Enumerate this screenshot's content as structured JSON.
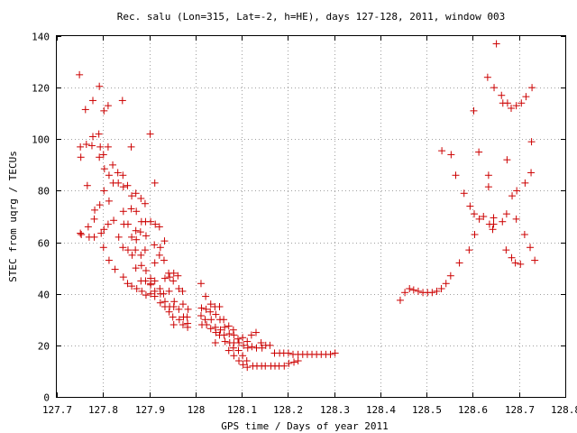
{
  "chart_data": {
    "type": "scatter",
    "title": "Rec. salu (Lon=315, Lat=-2, h=HE), days 127-128, 2011, window 003",
    "xlabel": "GPS time / Days of year 2011",
    "ylabel": "STEC from uqrg / TECUs",
    "xlim": [
      127.7,
      128.8
    ],
    "ylim": [
      0,
      140
    ],
    "x_ticks": [
      "127.7",
      "127.8",
      "127.9",
      "128",
      "128.1",
      "128.2",
      "128.3",
      "128.4",
      "128.5",
      "128.6",
      "128.7",
      "128.8"
    ],
    "y_ticks": [
      "0",
      "20",
      "40",
      "60",
      "80",
      "100",
      "120",
      "140"
    ],
    "grid": true,
    "marker": "+",
    "color": "#cc0000",
    "series": [
      {
        "points": [
          [
            127.749,
            125
          ],
          [
            127.751,
            97
          ],
          [
            127.752,
            93
          ],
          [
            127.751,
            63.5
          ],
          [
            127.753,
            63
          ],
          [
            127.762,
            111.5
          ],
          [
            127.764,
            98
          ],
          [
            127.766,
            82
          ],
          [
            127.768,
            66
          ],
          [
            127.77,
            62
          ],
          [
            127.778,
            115
          ],
          [
            127.778,
            101
          ],
          [
            127.776,
            97.5
          ],
          [
            127.781,
            69
          ],
          [
            127.782,
            72.5
          ],
          [
            127.781,
            62
          ],
          [
            127.792,
            120.5
          ],
          [
            127.791,
            102
          ],
          [
            127.794,
            97
          ],
          [
            127.792,
            93
          ],
          [
            127.793,
            74.5
          ],
          [
            127.796,
            63.5
          ],
          [
            127.802,
            111
          ],
          [
            127.801,
            94
          ],
          [
            127.803,
            88.5
          ],
          [
            127.802,
            80
          ],
          [
            127.802,
            65
          ],
          [
            127.801,
            58
          ],
          [
            127.811,
            113
          ],
          [
            127.811,
            97
          ],
          [
            127.813,
            86
          ],
          [
            127.813,
            76
          ],
          [
            127.811,
            67
          ],
          [
            127.813,
            53
          ],
          [
            127.821,
            90
          ],
          [
            127.822,
            83
          ],
          [
            127.823,
            68.5
          ],
          [
            127.826,
            49.5
          ],
          [
            127.832,
            87
          ],
          [
            127.833,
            83
          ],
          [
            127.834,
            62
          ],
          [
            127.842,
            115
          ],
          [
            127.843,
            86
          ],
          [
            127.844,
            81.5
          ],
          [
            127.844,
            72
          ],
          [
            127.845,
            67
          ],
          [
            127.843,
            58
          ],
          [
            127.844,
            46.5
          ],
          [
            127.853,
            82
          ],
          [
            127.854,
            67
          ],
          [
            127.854,
            57
          ],
          [
            127.853,
            44
          ],
          [
            127.861,
            97
          ],
          [
            127.862,
            78
          ],
          [
            127.861,
            73
          ],
          [
            127.862,
            62
          ],
          [
            127.863,
            55
          ],
          [
            127.862,
            43
          ],
          [
            127.871,
            79
          ],
          [
            127.872,
            72
          ],
          [
            127.871,
            64.5
          ],
          [
            127.872,
            61
          ],
          [
            127.87,
            57
          ],
          [
            127.871,
            50
          ],
          [
            127.873,
            42
          ],
          [
            127.882,
            77
          ],
          [
            127.883,
            68
          ],
          [
            127.881,
            64
          ],
          [
            127.882,
            55
          ],
          [
            127.883,
            51
          ],
          [
            127.882,
            45
          ],
          [
            127.884,
            41
          ],
          [
            127.891,
            75
          ],
          [
            127.892,
            68
          ],
          [
            127.893,
            62.5
          ],
          [
            127.891,
            57
          ],
          [
            127.893,
            49
          ],
          [
            127.892,
            45
          ],
          [
            127.893,
            39.5
          ],
          [
            127.902,
            102
          ],
          [
            127.903,
            68
          ],
          [
            127.903,
            46
          ],
          [
            127.903,
            44
          ],
          [
            127.903,
            43.5
          ],
          [
            127.903,
            40
          ],
          [
            127.912,
            83
          ],
          [
            127.913,
            67
          ],
          [
            127.911,
            59
          ],
          [
            127.912,
            52
          ],
          [
            127.912,
            45
          ],
          [
            127.912,
            41
          ],
          [
            127.912,
            39
          ],
          [
            127.922,
            66
          ],
          [
            127.924,
            58
          ],
          [
            127.922,
            55
          ],
          [
            127.923,
            42
          ],
          [
            127.924,
            40
          ],
          [
            127.924,
            36.5
          ],
          [
            127.933,
            60.5
          ],
          [
            127.932,
            53
          ],
          [
            127.934,
            46
          ],
          [
            127.931,
            40
          ],
          [
            127.934,
            37
          ],
          [
            127.934,
            35
          ],
          [
            127.942,
            48
          ],
          [
            127.944,
            46.5
          ],
          [
            127.943,
            41
          ],
          [
            127.944,
            35
          ],
          [
            127.943,
            33
          ],
          [
            127.953,
            48
          ],
          [
            127.952,
            45
          ],
          [
            127.954,
            37
          ],
          [
            127.953,
            35
          ],
          [
            127.951,
            31
          ],
          [
            127.953,
            28
          ],
          [
            127.962,
            47
          ],
          [
            127.964,
            42
          ],
          [
            127.964,
            34
          ],
          [
            127.965,
            30
          ],
          [
            127.972,
            41
          ],
          [
            127.973,
            36
          ],
          [
            127.974,
            31
          ],
          [
            127.973,
            28
          ],
          [
            127.984,
            34
          ],
          [
            127.982,
            31
          ],
          [
            127.983,
            28.5
          ],
          [
            127.983,
            27
          ],
          [
            128.012,
            44
          ],
          [
            128.013,
            34.5
          ],
          [
            128.012,
            31.5
          ],
          [
            128.014,
            28
          ],
          [
            128.022,
            39
          ],
          [
            128.023,
            34
          ],
          [
            128.021,
            30
          ],
          [
            128.024,
            28
          ],
          [
            128.033,
            36
          ],
          [
            128.032,
            33
          ],
          [
            128.034,
            30
          ],
          [
            128.033,
            26.5
          ],
          [
            128.042,
            35
          ],
          [
            128.044,
            32
          ],
          [
            128.043,
            27
          ],
          [
            128.044,
            25
          ],
          [
            128.043,
            21
          ],
          [
            128.052,
            35
          ],
          [
            128.053,
            30
          ],
          [
            128.054,
            26
          ],
          [
            128.052,
            24
          ],
          [
            128.061,
            30
          ],
          [
            128.063,
            27
          ],
          [
            128.062,
            24
          ],
          [
            128.064,
            21.5
          ],
          [
            128.072,
            27.5
          ],
          [
            128.073,
            24.5
          ],
          [
            128.074,
            21
          ],
          [
            128.072,
            18
          ],
          [
            128.082,
            26
          ],
          [
            128.083,
            24
          ],
          [
            128.083,
            21
          ],
          [
            128.082,
            19
          ],
          [
            128.083,
            16
          ],
          [
            128.092,
            22.5
          ],
          [
            128.094,
            21
          ],
          [
            128.093,
            18
          ],
          [
            128.094,
            14
          ],
          [
            128.102,
            23
          ],
          [
            128.104,
            20
          ],
          [
            128.102,
            16
          ],
          [
            128.103,
            12.5
          ],
          [
            128.112,
            21.5
          ],
          [
            128.113,
            19
          ],
          [
            128.111,
            14
          ],
          [
            128.112,
            11.5
          ],
          [
            128.121,
            24
          ],
          [
            128.122,
            19.5
          ],
          [
            128.124,
            12
          ],
          [
            128.131,
            25
          ],
          [
            128.132,
            19
          ],
          [
            128.133,
            12
          ],
          [
            128.142,
            21
          ],
          [
            128.144,
            19
          ],
          [
            128.143,
            12
          ],
          [
            128.152,
            20
          ],
          [
            128.151,
            12
          ],
          [
            128.161,
            20
          ],
          [
            128.163,
            12
          ],
          [
            128.171,
            17
          ],
          [
            128.172,
            12
          ],
          [
            128.182,
            17
          ],
          [
            128.181,
            12
          ],
          [
            128.191,
            17
          ],
          [
            128.192,
            12
          ],
          [
            128.201,
            17
          ],
          [
            128.202,
            13
          ],
          [
            128.211,
            16.5
          ],
          [
            128.213,
            13.5
          ],
          [
            128.222,
            16.5
          ],
          [
            128.222,
            14
          ],
          [
            128.232,
            16.5
          ],
          [
            128.242,
            16.5
          ],
          [
            128.252,
            16.5
          ],
          [
            128.262,
            16.5
          ],
          [
            128.272,
            16.5
          ],
          [
            128.282,
            16.5
          ],
          [
            128.292,
            16.5
          ],
          [
            128.302,
            17
          ],
          [
            128.443,
            37.5
          ],
          [
            128.453,
            40.5
          ],
          [
            128.463,
            42
          ],
          [
            128.472,
            41.5
          ],
          [
            128.482,
            41
          ],
          [
            128.492,
            40.5
          ],
          [
            128.502,
            40.5
          ],
          [
            128.512,
            40.5
          ],
          [
            128.522,
            41
          ],
          [
            128.532,
            42
          ],
          [
            128.542,
            44
          ],
          [
            128.552,
            47
          ],
          [
            128.533,
            95.5
          ],
          [
            128.553,
            94
          ],
          [
            128.563,
            86
          ],
          [
            128.571,
            52
          ],
          [
            128.581,
            79
          ],
          [
            128.592,
            57
          ],
          [
            128.594,
            74
          ],
          [
            128.603,
            71
          ],
          [
            128.604,
            63
          ],
          [
            128.602,
            111
          ],
          [
            128.613,
            95
          ],
          [
            128.614,
            69
          ],
          [
            128.623,
            70
          ],
          [
            128.632,
            124
          ],
          [
            128.634,
            86
          ],
          [
            128.634,
            81.5
          ],
          [
            128.636,
            67
          ],
          [
            128.643,
            65
          ],
          [
            128.645,
            69.5
          ],
          [
            128.645,
            67
          ],
          [
            128.646,
            120
          ],
          [
            128.651,
            137
          ],
          [
            128.662,
            117
          ],
          [
            128.664,
            68
          ],
          [
            128.665,
            114
          ],
          [
            128.672,
            57
          ],
          [
            128.674,
            92
          ],
          [
            128.673,
            71
          ],
          [
            128.675,
            114
          ],
          [
            128.683,
            112
          ],
          [
            128.684,
            54
          ],
          [
            128.685,
            78
          ],
          [
            128.692,
            52
          ],
          [
            128.694,
            69
          ],
          [
            128.695,
            80
          ],
          [
            128.694,
            113
          ],
          [
            128.703,
            51.5
          ],
          [
            128.705,
            114
          ],
          [
            128.712,
            63
          ],
          [
            128.713,
            83
          ],
          [
            128.715,
            116.5
          ],
          [
            128.724,
            58
          ],
          [
            128.726,
            87
          ],
          [
            128.727,
            99
          ],
          [
            128.728,
            120
          ],
          [
            128.734,
            53
          ]
        ]
      }
    ]
  }
}
